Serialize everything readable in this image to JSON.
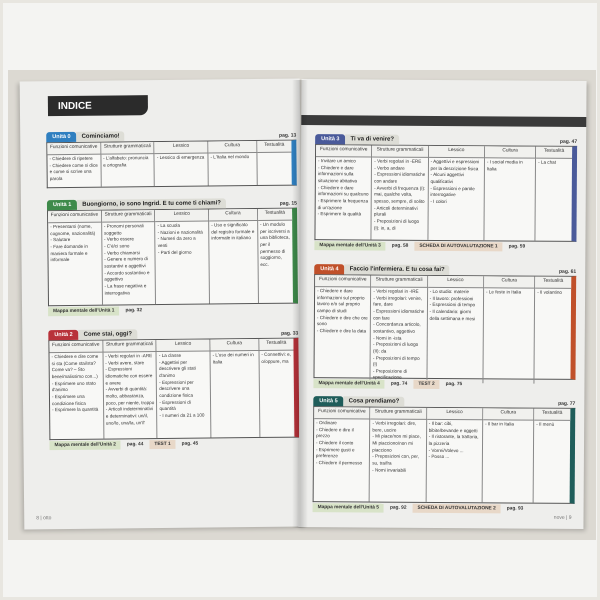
{
  "header": {
    "title": "INDICE"
  },
  "columns": [
    "Funzioni comunicative",
    "Strutture grammaticali",
    "Lessico",
    "Cultura",
    "Testualità"
  ],
  "left_units": [
    {
      "tab": "Unità 0",
      "title": "Cominciamo!",
      "page": "pag. 13",
      "color": "#2f7fc0",
      "cells": [
        [
          "Chiedere di ripetere",
          "Chiedere come si dice e come si scrive una parola"
        ],
        [
          "L'alfabeto: pronuncia e ortografia"
        ],
        [
          "Lessico di emergenza"
        ],
        [
          "L'Italia nel mondo"
        ],
        []
      ],
      "footer": []
    },
    {
      "tab": "Unità 1",
      "title": "Buongiorno, io sono Ingrid. E tu come ti chiami?",
      "page": "pag. 15",
      "color": "#3e8a4a",
      "cells": [
        [
          "Presentarsi (nome, cognome, nazionalità)",
          "Salutare",
          "Fare domande in maniera formale e informale"
        ],
        [
          "Pronomi personali soggetto",
          "Verbo essere",
          "C'è/ci sono",
          "Verbo chiamarsi",
          "Genere e numero di sostantivi e aggettivi",
          "Accordo sostantivo e aggettivo",
          "La frase negativa e interrogativa"
        ],
        [
          "La scuola",
          "Nazioni e nazionalità",
          "Numeri da zero a venti",
          "Parti del giorno"
        ],
        [
          "Uso e significato del registro formale e informale in italiano"
        ],
        [
          "Un modulo per iscriversi a una biblioteca, per il permesso di soggiorno, ecc."
        ]
      ],
      "footer": [
        {
          "label": "Mappa mentale dell'Unità 1",
          "page": "pag. 32"
        }
      ]
    },
    {
      "tab": "Unità 2",
      "title": "Come stai, oggi?",
      "page": "pag. 33",
      "color": "#b8323a",
      "cells": [
        [
          "Chiedere e dire come si sta (Come stai/sta? Come va? – Sto bene/malissimo con...)",
          "Esprimere uno stato d'animo",
          "Esprimere una condizione fisica",
          "Esprimere la quantità"
        ],
        [
          "Verbi regolari in -ARE",
          "Verbi avere, stare",
          "Espressioni idiomatiche con essere e avere",
          "Avverbi di quantità: molto, abbastanza, poco, per niente, troppo",
          "Articoli indeterminativi e determinativi: un/il, uno/lo, una/la, un'/l'"
        ],
        [
          "La classe",
          "Aggettivi per descrivere gli stati d'animo",
          "Espressioni per descrivere una condizione fisica",
          "Espressioni di quantità",
          "I numeri da 21 a 100"
        ],
        [
          "L'uso dei numeri in Italia"
        ],
        [
          "Connettivi: e, o/oppure, ma"
        ]
      ],
      "footer": [
        {
          "label": "Mappa mentale dell'Unità 2",
          "page": "pag. 44"
        },
        {
          "label": "TEST 1",
          "page": "pag. 45"
        }
      ]
    }
  ],
  "right_units": [
    {
      "tab": "Unità 3",
      "title": "Ti va di venire?",
      "page": "pag. 47",
      "color": "#4a5a9a",
      "cells": [
        [
          "Invitare un amico",
          "Chiedere e dare informazioni sulla situazione abitativa",
          "Chiedere e dare informazioni su qualcuno",
          "Esprimere la frequenza di un'azione",
          "Esprimere la qualità"
        ],
        [
          "Verbi regolari in -ERE",
          "Verbo andare",
          "Espressioni idiomatiche con andare",
          "Avverbi di frequenza (I): mai, qualche volta, spesso, sempre, di solito",
          "Articoli determinativi plurali",
          "Preposizioni di luogo (I): in, a, di"
        ],
        [
          "Aggettivi e espressioni per la descrizione fisica",
          "Alcuni aggettivi qualificativi",
          "Espressioni e parole interrogative",
          "I colori"
        ],
        [
          "I social media in Italia"
        ],
        [
          "La chat"
        ]
      ],
      "footer": [
        {
          "label": "Mappa mentale dell'Unità 3",
          "page": "pag. 58"
        },
        {
          "label": "SCHEDA DI AUTOVALUTAZIONE 1",
          "page": "pag. 59"
        }
      ]
    },
    {
      "tab": "Unità 4",
      "title": "Faccio l'infermiera. E tu cosa fai?",
      "page": "pag. 61",
      "color": "#c0502a",
      "cells": [
        [
          "Chiedere e dare informazioni sul proprio lavoro e/o sul proprio campo di studi",
          "Chiedere e dire che ore sono",
          "Chiedere e dire la data"
        ],
        [
          "Verbi regolari in -IRE",
          "Verbi irregolari: venire, fare, dare",
          "Espressioni idiomatiche con fare",
          "Concordanza articolo, sostantivo, aggettivo",
          "Nomi in -ista",
          "Preposizioni di luogo (II): da",
          "Preposizioni di tempo (I)",
          "Preposizione di specificazione"
        ],
        [
          "Lo studio: materie",
          "Il lavoro: professioni",
          "Espressioni di tempo",
          "Il calendario: giorni della settimana e mesi"
        ],
        [
          "Le feste in Italia"
        ],
        [
          "Il volantino"
        ]
      ],
      "footer": [
        {
          "label": "Mappa mentale dell'Unità 4",
          "page": "pag. 74"
        },
        {
          "label": "TEST 2",
          "page": "pag. 75"
        }
      ]
    },
    {
      "tab": "Unità 5",
      "title": "Cosa prendiamo?",
      "page": "pag. 77",
      "color": "#1f5d5a",
      "cells": [
        [
          "Ordinare",
          "Chiedere e dire il prezzo",
          "Chiedere il conto",
          "Esprimere gusti e preferenze",
          "Chiedere il permesso"
        ],
        [
          "Verbi irregolari: dire, bere, uscire",
          "Mi piace/non mi piace, Mi piacciono/non mi piacciono",
          "Preposizioni con, per, su, tra/fra",
          "Nomi invariabili"
        ],
        [
          "Il bar: cibi, bibite/bevande e oggetti",
          "Il ristorante, la trattoria, la pizzeria",
          "Vorrei/Volevo ...",
          "Posso ..."
        ],
        [
          "Il bar in Italia"
        ],
        [
          "Il menù"
        ]
      ],
      "footer": [
        {
          "label": "Mappa mentale dell'Unità 5",
          "page": "pag. 92"
        },
        {
          "label": "SCHEDA DI AUTOVALUTAZIONE 2",
          "page": "pag. 93"
        }
      ]
    }
  ],
  "page_numbers": {
    "left": "8  |  otto",
    "right": "nove  |  9"
  }
}
